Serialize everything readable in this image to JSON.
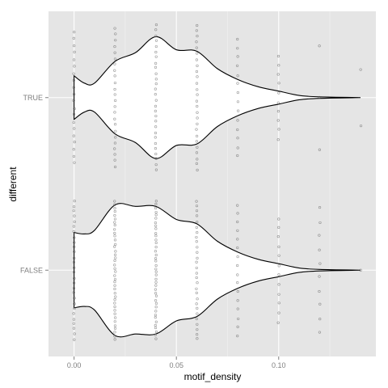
{
  "chart_data": {
    "type": "violin",
    "xlabel": "motif_density",
    "ylabel": "different",
    "xlim": [
      -0.0125,
      0.1475
    ],
    "x_ticks": [
      0.0,
      0.05,
      0.1
    ],
    "x_tick_labels": [
      "0.00",
      "0.05",
      "0.10"
    ],
    "categories": [
      "TRUE",
      "FALSE"
    ],
    "grid": true,
    "legend": "none",
    "colors": {
      "panel": "#e5e5e5",
      "grid_major": "#ffffff",
      "grid_minor": "#f2f2f2",
      "violin_fill": "#ffffff",
      "violin_line": "#000000",
      "point": "#555555"
    },
    "violin_max_halfwidth": 0.42,
    "series": [
      {
        "name": "TRUE",
        "outline": [
          [
            0.0,
            0.3
          ],
          [
            0.005,
            0.2
          ],
          [
            0.01,
            0.2
          ],
          [
            0.02,
            0.5
          ],
          [
            0.03,
            0.62
          ],
          [
            0.04,
            0.84
          ],
          [
            0.05,
            0.66
          ],
          [
            0.06,
            0.64
          ],
          [
            0.07,
            0.4
          ],
          [
            0.08,
            0.25
          ],
          [
            0.09,
            0.15
          ],
          [
            0.1,
            0.09
          ],
          [
            0.11,
            0.03
          ],
          [
            0.12,
            0.01
          ],
          [
            0.14,
            0.0
          ]
        ],
        "points": [
          {
            "x": 0.0,
            "n": 20
          },
          {
            "x": 0.02,
            "n": 24
          },
          {
            "x": 0.04,
            "n": 28
          },
          {
            "x": 0.06,
            "n": 26
          },
          {
            "x": 0.08,
            "n": 14
          },
          {
            "x": 0.1,
            "n": 10
          },
          {
            "x": 0.12,
            "n": 3
          },
          {
            "x": 0.14,
            "n": 2
          }
        ],
        "point_spread": [
          0.38,
          0.4,
          0.42,
          0.42,
          0.34,
          0.24,
          0.3,
          0.16
        ]
      },
      {
        "name": "FALSE",
        "outline": [
          [
            0.0,
            0.52
          ],
          [
            0.005,
            0.5
          ],
          [
            0.01,
            0.55
          ],
          [
            0.02,
            0.9
          ],
          [
            0.03,
            0.88
          ],
          [
            0.04,
            0.88
          ],
          [
            0.05,
            0.7
          ],
          [
            0.06,
            0.64
          ],
          [
            0.07,
            0.4
          ],
          [
            0.08,
            0.25
          ],
          [
            0.09,
            0.15
          ],
          [
            0.1,
            0.09
          ],
          [
            0.11,
            0.03
          ],
          [
            0.12,
            0.01
          ],
          [
            0.14,
            0.0
          ]
        ],
        "points": [
          {
            "x": 0.0,
            "n": 28
          },
          {
            "x": 0.02,
            "n": 40
          },
          {
            "x": 0.04,
            "n": 40
          },
          {
            "x": 0.06,
            "n": 28
          },
          {
            "x": 0.08,
            "n": 16
          },
          {
            "x": 0.1,
            "n": 12
          },
          {
            "x": 0.12,
            "n": 10
          },
          {
            "x": 0.14,
            "n": 1
          }
        ],
        "point_spread": [
          0.4,
          0.4,
          0.4,
          0.4,
          0.38,
          0.3,
          0.36,
          0.14
        ]
      }
    ]
  }
}
